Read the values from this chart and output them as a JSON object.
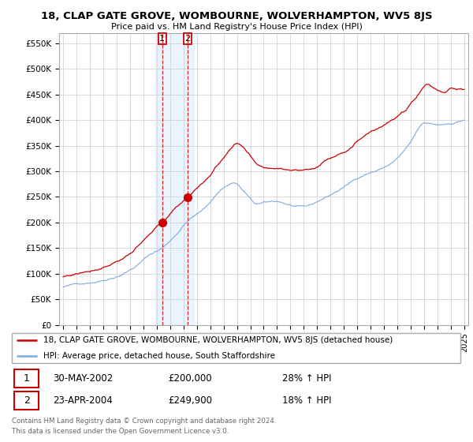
{
  "title": "18, CLAP GATE GROVE, WOMBOURNE, WOLVERHAMPTON, WV5 8JS",
  "subtitle": "Price paid vs. HM Land Registry's House Price Index (HPI)",
  "red_label": "18, CLAP GATE GROVE, WOMBOURNE, WOLVERHAMPTON, WV5 8JS (detached house)",
  "blue_label": "HPI: Average price, detached house, South Staffordshire",
  "transaction1_date": "30-MAY-2002",
  "transaction1_price": "£200,000",
  "transaction1_hpi": "28% ↑ HPI",
  "transaction2_date": "23-APR-2004",
  "transaction2_price": "£249,900",
  "transaction2_hpi": "18% ↑ HPI",
  "footer1": "Contains HM Land Registry data © Crown copyright and database right 2024.",
  "footer2": "This data is licensed under the Open Government Licence v3.0.",
  "red_color": "#cc0000",
  "blue_color": "#7aaadd",
  "shading_color": "#ddeeff",
  "background_color": "#ffffff",
  "grid_color": "#cccccc",
  "ylim": [
    0,
    570000
  ],
  "yticks": [
    0,
    50000,
    100000,
    150000,
    200000,
    250000,
    300000,
    350000,
    400000,
    450000,
    500000,
    550000
  ],
  "ytick_labels": [
    "£0",
    "£50K",
    "£100K",
    "£150K",
    "£200K",
    "£250K",
    "£300K",
    "£350K",
    "£400K",
    "£450K",
    "£500K",
    "£550K"
  ],
  "transaction1_x": 2002.41,
  "transaction1_y": 200000,
  "transaction2_x": 2004.31,
  "transaction2_y": 249900,
  "xmin": 1995,
  "xmax": 2025
}
